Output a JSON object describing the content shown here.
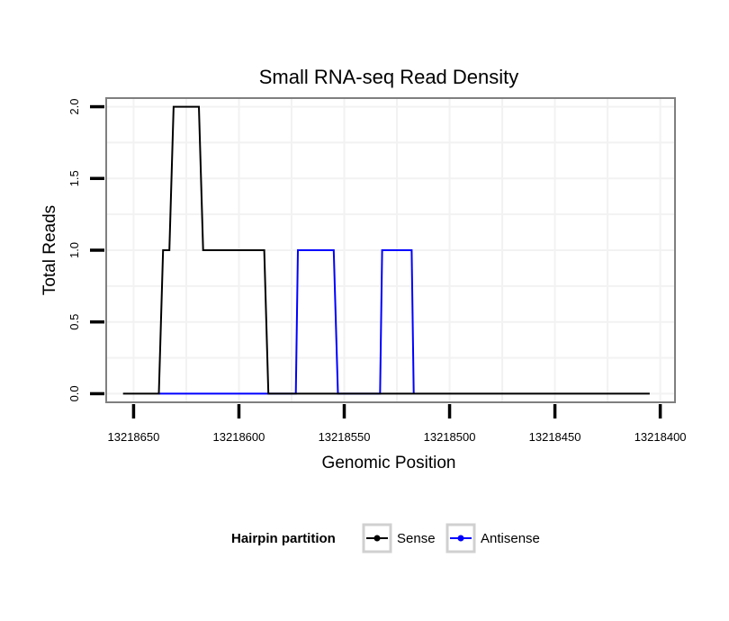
{
  "chart_data": {
    "type": "line",
    "title": "Small RNA-seq Read Density",
    "xlabel": "Genomic Position",
    "ylabel": "Total Reads",
    "x_reversed": true,
    "xlim": [
      13218663,
      13218393
    ],
    "ylim": [
      -0.06,
      2.06
    ],
    "x_ticks": [
      13218650,
      13218600,
      13218550,
      13218500,
      13218450,
      13218400
    ],
    "x_tick_labels": [
      "13218650",
      "13218600",
      "13218550",
      "13218500",
      "13218450",
      "13218400"
    ],
    "y_ticks": [
      0,
      0.5,
      1,
      1.5,
      2
    ],
    "y_tick_labels": [
      "0.0",
      "0.5",
      "1.0",
      "1.5",
      "2.0"
    ],
    "grid": true,
    "legend": {
      "title": "Hairpin partition",
      "position": "bottom"
    },
    "series": [
      {
        "name": "Sense",
        "color": "#000000",
        "x": [
          13218655,
          13218638,
          13218636,
          13218633,
          13218631,
          13218619,
          13218617,
          13218588,
          13218586,
          13218405
        ],
        "y": [
          0,
          0,
          1,
          1,
          2,
          2,
          1,
          1,
          0,
          0
        ]
      },
      {
        "name": "Antisense",
        "color": "#0000ff",
        "x": [
          13218638,
          13218588,
          13218573,
          13218572,
          13218555,
          13218553,
          13218533,
          13218532,
          13218518,
          13218517
        ],
        "y": [
          0,
          0,
          0,
          1,
          1,
          0,
          0,
          1,
          1,
          0
        ]
      }
    ]
  }
}
